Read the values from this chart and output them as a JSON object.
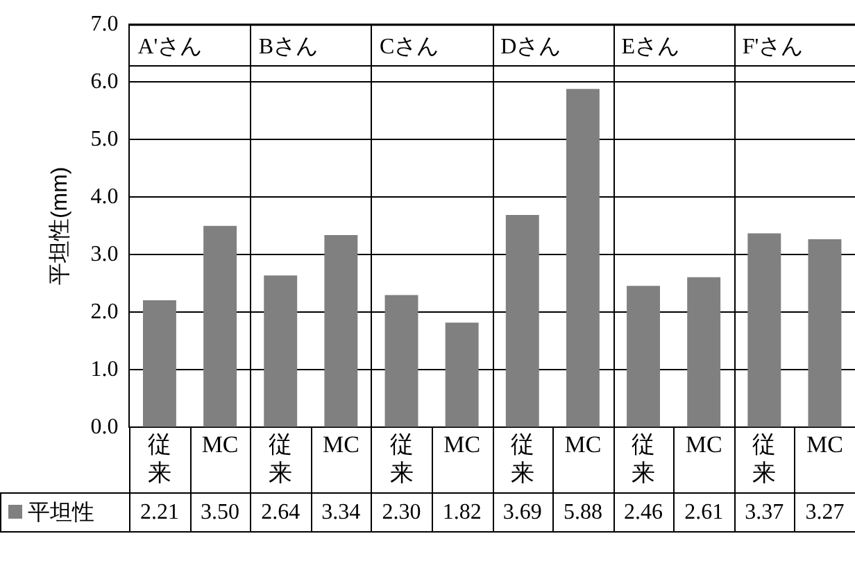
{
  "chart_data": {
    "type": "bar",
    "ylabel": "平坦性(mm)",
    "categories": [
      "従来",
      "MC",
      "従来",
      "MC",
      "従来",
      "MC",
      "従来",
      "MC",
      "従来",
      "MC",
      "従来",
      "MC"
    ],
    "series": [
      {
        "name": "平坦性",
        "color": "#808080",
        "values": [
          2.21,
          3.5,
          2.64,
          3.34,
          2.3,
          1.82,
          3.69,
          5.88,
          2.46,
          2.61,
          3.37,
          3.27
        ],
        "value_labels": [
          "2.21",
          "3.50",
          "2.64",
          "3.34",
          "2.30",
          "1.82",
          "3.69",
          "5.88",
          "2.46",
          "2.61",
          "3.37",
          "3.27"
        ]
      }
    ],
    "ylim": [
      0,
      7
    ],
    "yticks": [
      {
        "value": 0,
        "label": "0.0"
      },
      {
        "value": 1,
        "label": "1.0"
      },
      {
        "value": 2,
        "label": "2.0"
      },
      {
        "value": 3,
        "label": "3.0"
      },
      {
        "value": 4,
        "label": "4.0"
      },
      {
        "value": 5,
        "label": "5.0"
      },
      {
        "value": 6,
        "label": "6.0"
      },
      {
        "value": 7,
        "label": "7.0"
      }
    ],
    "annotations": [
      "A'さん",
      "Bさん",
      "Cさん",
      "Dさん",
      "Eさん",
      "F'さん"
    ],
    "grid": "y",
    "legend": "bottom"
  }
}
